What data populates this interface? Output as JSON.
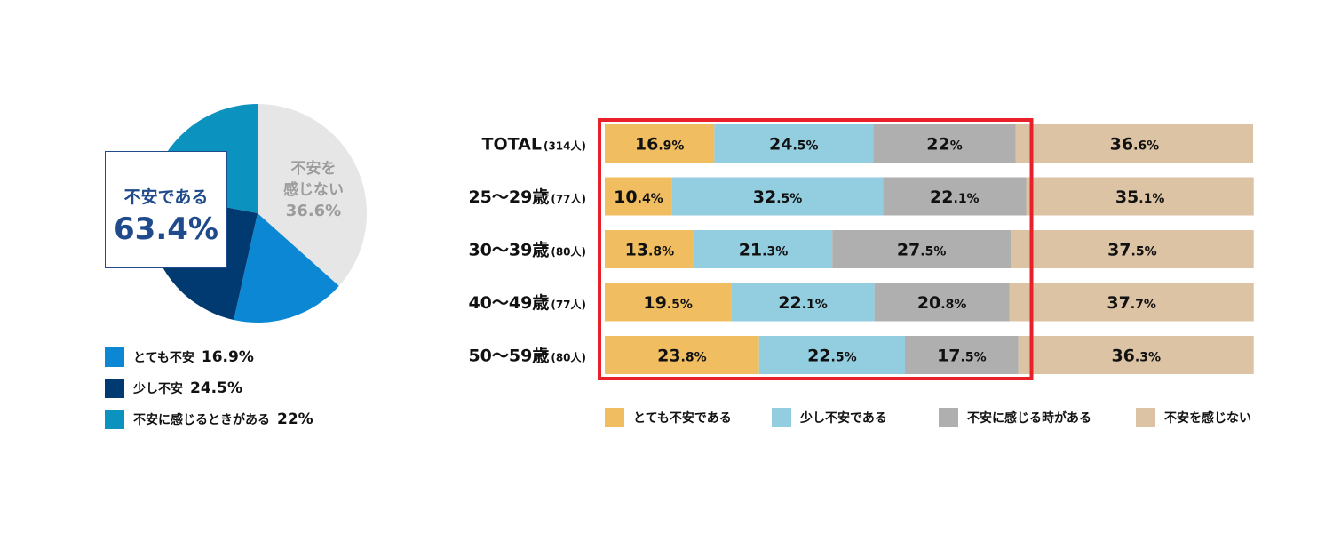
{
  "pie": {
    "callout_label": "不安である",
    "callout_value": "63.4%",
    "rest_label_line1": "不安を",
    "rest_label_line2": "感じない",
    "rest_value": "36.6%",
    "legend": [
      {
        "label": "とても不安",
        "value": "16.9%",
        "color": "#0b87d4"
      },
      {
        "label": "少し不安",
        "value": "24.5%",
        "color": "#003a70"
      },
      {
        "label": "不安に感じるときがある",
        "value": "22%",
        "color": "#0b92bf"
      }
    ]
  },
  "chart_data": [
    {
      "type": "pie",
      "slices": [
        {
          "label": "不安を感じない",
          "value": 36.6,
          "color": "#e6e6e6"
        },
        {
          "label": "とても不安",
          "value": 16.9,
          "color": "#0b87d4"
        },
        {
          "label": "少し不安",
          "value": 24.5,
          "color": "#003a70"
        },
        {
          "label": "不安に感じるときがある",
          "value": 22,
          "color": "#0b92bf"
        }
      ]
    },
    {
      "type": "bar",
      "orientation": "horizontal-stacked",
      "categories": [
        {
          "name": "TOTAL",
          "count": "(314人)"
        },
        {
          "name": "25～29歳",
          "count": "(77人)"
        },
        {
          "name": "30～39歳",
          "count": "(80人)"
        },
        {
          "name": "40～49歳",
          "count": "(77人)"
        },
        {
          "name": "50～59歳",
          "count": "(80人)"
        }
      ],
      "series": [
        {
          "name": "とても不安である",
          "color": "#f0be60",
          "values": [
            16.9,
            10.4,
            13.8,
            19.5,
            23.8
          ]
        },
        {
          "name": "少し不安である",
          "color": "#93cde0",
          "values": [
            24.5,
            32.5,
            21.3,
            22.1,
            22.5
          ]
        },
        {
          "name": "不安に感じる時がある",
          "color": "#afafaf",
          "values": [
            22,
            22.1,
            27.5,
            20.8,
            17.5
          ]
        },
        {
          "name": "不安を感じない",
          "color": "#dcc3a4",
          "values": [
            36.6,
            35.1,
            37.5,
            37.7,
            36.3
          ]
        }
      ],
      "highlight_color": "#e8202a"
    }
  ]
}
